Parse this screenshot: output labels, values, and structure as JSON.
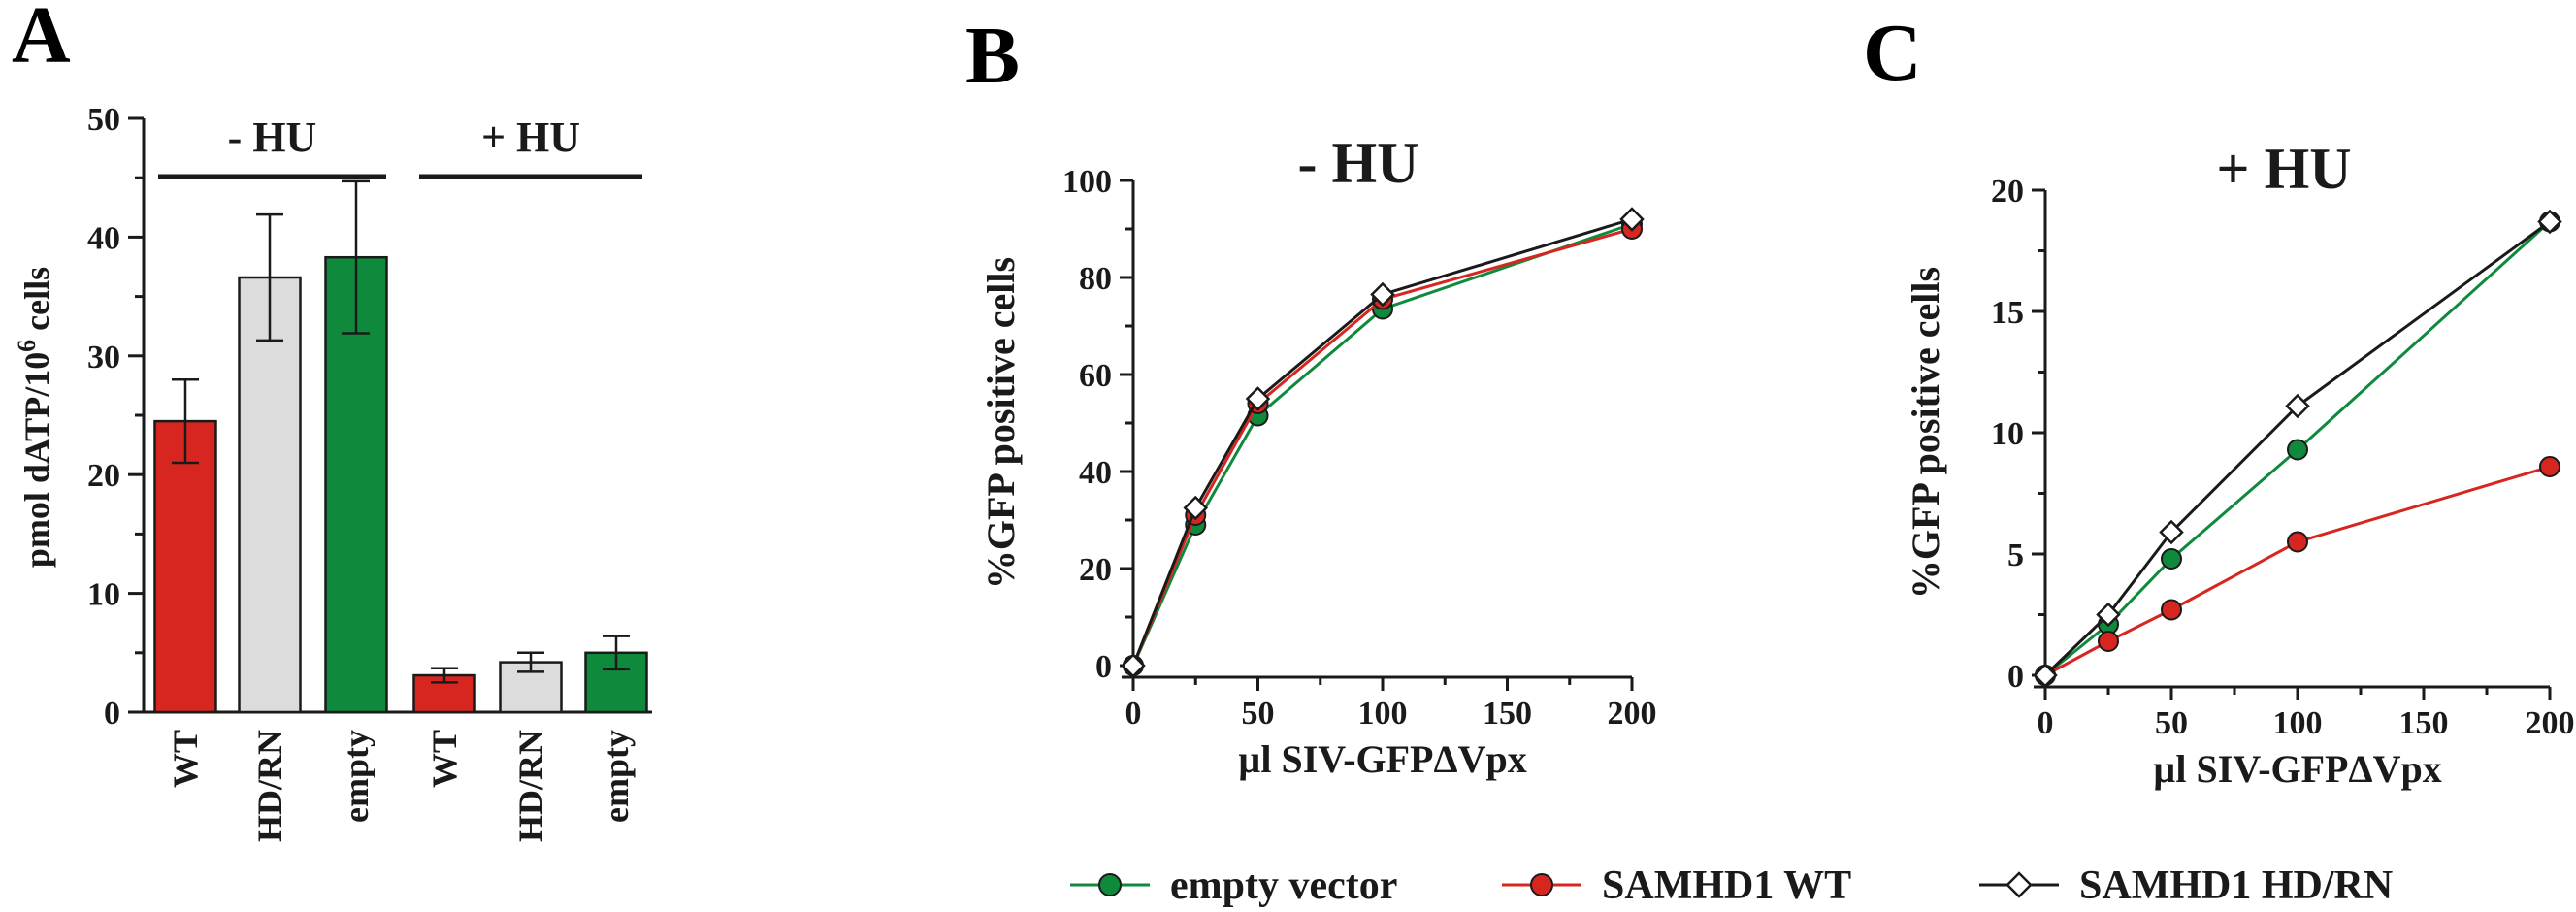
{
  "panels": {
    "a": {
      "letter": "A"
    },
    "b": {
      "letter": "B"
    },
    "c": {
      "letter": "C"
    }
  },
  "colors": {
    "wt": "#d7261f",
    "hdrn": "#dcdcdc",
    "empty": "#0f8a3c",
    "axis": "#1a1a1a"
  },
  "chart_data": [
    {
      "id": "A",
      "type": "bar",
      "ylabel": "pmol dATP/10",
      "ylabel_sup": "6",
      "ylabel_suffix": " cells",
      "ylim": [
        0,
        50
      ],
      "yticks": [
        "0",
        "10",
        "20",
        "30",
        "40",
        "50"
      ],
      "groups": [
        {
          "label": "- HU",
          "categories": [
            "WT",
            "HD/RN",
            "empty"
          ]
        },
        {
          "label": "+ HU",
          "categories": [
            "WT",
            "HD/RN",
            "empty"
          ]
        }
      ],
      "bars": [
        {
          "group": 0,
          "category": "WT",
          "value": 24.5,
          "error": 3.5,
          "color_key": "wt"
        },
        {
          "group": 0,
          "category": "HD/RN",
          "value": 36.6,
          "error": 5.3,
          "color_key": "hdrn"
        },
        {
          "group": 0,
          "category": "empty",
          "value": 38.3,
          "error": 6.4,
          "color_key": "empty"
        },
        {
          "group": 1,
          "category": "WT",
          "value": 3.1,
          "error": 0.6,
          "color_key": "wt"
        },
        {
          "group": 1,
          "category": "HD/RN",
          "value": 4.2,
          "error": 0.8,
          "color_key": "hdrn"
        },
        {
          "group": 1,
          "category": "empty",
          "value": 5.0,
          "error": 1.4,
          "color_key": "empty"
        }
      ]
    },
    {
      "id": "B",
      "type": "line",
      "title": "- HU",
      "xlabel": "µl SIV-GFPΔVpx",
      "ylabel": "%GFP positive cells",
      "xlim": [
        0,
        200
      ],
      "ylim": [
        0,
        100
      ],
      "xticks": [
        "0",
        "50",
        "100",
        "150",
        "200"
      ],
      "yticks": [
        "0",
        "20",
        "40",
        "60",
        "80",
        "100"
      ],
      "x": [
        0,
        25,
        50,
        100,
        200
      ],
      "series": [
        {
          "name": "empty vector",
          "values": [
            0,
            29,
            51.5,
            73.5,
            91
          ],
          "color_key": "empty",
          "marker": "circle"
        },
        {
          "name": "SAMHD1 WT",
          "values": [
            0,
            31,
            54,
            75.5,
            90
          ],
          "color_key": "wt",
          "marker": "circle"
        },
        {
          "name": "SAMHD1 HD/RN",
          "values": [
            0,
            32.5,
            55,
            76.5,
            92
          ],
          "color_key": "axis",
          "marker": "diamond"
        }
      ]
    },
    {
      "id": "C",
      "type": "line",
      "title": "+ HU",
      "xlabel": "µl SIV-GFPΔVpx",
      "ylabel": "%GFP positive cells",
      "xlim": [
        0,
        200
      ],
      "ylim": [
        0,
        20
      ],
      "xticks": [
        "0",
        "50",
        "100",
        "150",
        "200"
      ],
      "yticks": [
        "0",
        "5",
        "10",
        "15",
        "20"
      ],
      "x": [
        0,
        25,
        50,
        100,
        200
      ],
      "series": [
        {
          "name": "empty vector",
          "values": [
            0,
            2.1,
            4.8,
            9.3,
            18.7
          ],
          "color_key": "empty",
          "marker": "circle"
        },
        {
          "name": "SAMHD1 WT",
          "values": [
            0,
            1.4,
            2.7,
            5.5,
            8.6
          ],
          "color_key": "wt",
          "marker": "circle"
        },
        {
          "name": "SAMHD1 HD/RN",
          "values": [
            0,
            2.5,
            5.9,
            11.1,
            18.7
          ],
          "color_key": "axis",
          "marker": "diamond"
        }
      ]
    }
  ],
  "legend": {
    "placement": "bottom",
    "items": [
      "empty vector",
      "SAMHD1 WT",
      "SAMHD1 HD/RN"
    ]
  }
}
